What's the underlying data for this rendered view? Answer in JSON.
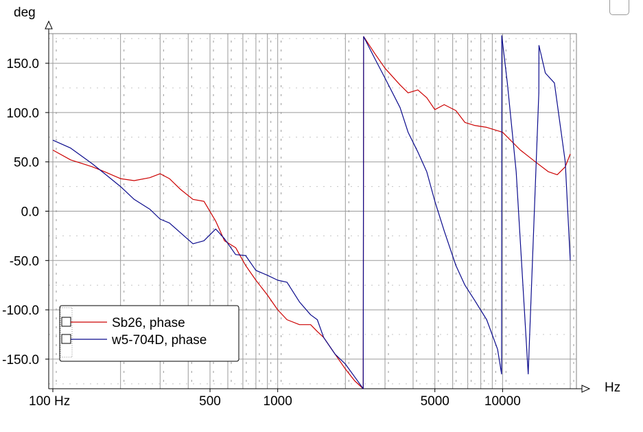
{
  "chart_data": {
    "type": "line",
    "xscale": "log",
    "xlim": [
      100,
      20000
    ],
    "ylim": [
      -180,
      180
    ],
    "ylabel": "deg",
    "xlabel": "Hz",
    "grid": true,
    "legend_placement": "bottom-left",
    "xtick_labels": [
      {
        "value": 100,
        "label": "100 Hz"
      },
      {
        "value": 500,
        "label": "500"
      },
      {
        "value": 1000,
        "label": "1000"
      },
      {
        "value": 5000,
        "label": "5000"
      },
      {
        "value": 10000,
        "label": "10000"
      }
    ],
    "ytick_labels": [
      {
        "value": 150,
        "label": "150.0"
      },
      {
        "value": 100,
        "label": "100.0"
      },
      {
        "value": 50,
        "label": "50.0"
      },
      {
        "value": 0,
        "label": "0.0"
      },
      {
        "value": -50,
        "label": "-50.0"
      },
      {
        "value": -100,
        "label": "-100.0"
      },
      {
        "value": -150,
        "label": "-150.0"
      }
    ],
    "series": [
      {
        "name": "Sb26, phase",
        "color": "#cc0000",
        "x": [
          100,
          120,
          150,
          170,
          200,
          230,
          270,
          300,
          330,
          370,
          420,
          470,
          530,
          580,
          650,
          720,
          800,
          900,
          1000,
          1100,
          1250,
          1400,
          1500,
          1600,
          1800,
          2000,
          2200,
          2400,
          2410,
          2700,
          3000,
          3500,
          3800,
          4200,
          4600,
          5000,
          5500,
          6200,
          6800,
          7500,
          8500,
          10000,
          12000,
          14000,
          16000,
          17500,
          19000,
          20000
        ],
        "y": [
          62,
          52,
          45,
          40,
          33,
          31,
          34,
          38,
          33,
          22,
          12,
          10,
          -10,
          -30,
          -37,
          -55,
          -70,
          -85,
          -100,
          -110,
          -115,
          -115,
          -122,
          -128,
          -145,
          -160,
          -172,
          -180,
          177,
          160,
          145,
          128,
          120,
          123,
          115,
          103,
          108,
          102,
          90,
          87,
          85,
          80,
          62,
          50,
          40,
          37,
          45,
          58
        ]
      },
      {
        "name": "w5-704D, phase",
        "color": "#0a0a8c",
        "x": [
          100,
          120,
          150,
          170,
          200,
          230,
          270,
          300,
          330,
          370,
          420,
          470,
          530,
          580,
          650,
          720,
          800,
          900,
          1000,
          1100,
          1250,
          1400,
          1500,
          1600,
          1800,
          2000,
          2200,
          2400,
          2410,
          2700,
          3000,
          3500,
          3800,
          4200,
          4600,
          5000,
          5500,
          6200,
          6800,
          7500,
          8500,
          9500,
          9900,
          9920,
          10500,
          11500,
          13000,
          14500,
          14520,
          15500,
          17000,
          19000,
          20000
        ],
        "y": [
          72,
          64,
          48,
          38,
          25,
          12,
          2,
          -8,
          -12,
          -22,
          -33,
          -30,
          -18,
          -28,
          -44,
          -45,
          -60,
          -65,
          -70,
          -72,
          -92,
          -105,
          -110,
          -128,
          -145,
          -155,
          -168,
          -180,
          177,
          155,
          135,
          105,
          80,
          60,
          40,
          10,
          -20,
          -55,
          -75,
          -90,
          -110,
          -140,
          -165,
          178,
          130,
          40,
          -165,
          120,
          168,
          140,
          130,
          50,
          -50
        ]
      }
    ]
  }
}
